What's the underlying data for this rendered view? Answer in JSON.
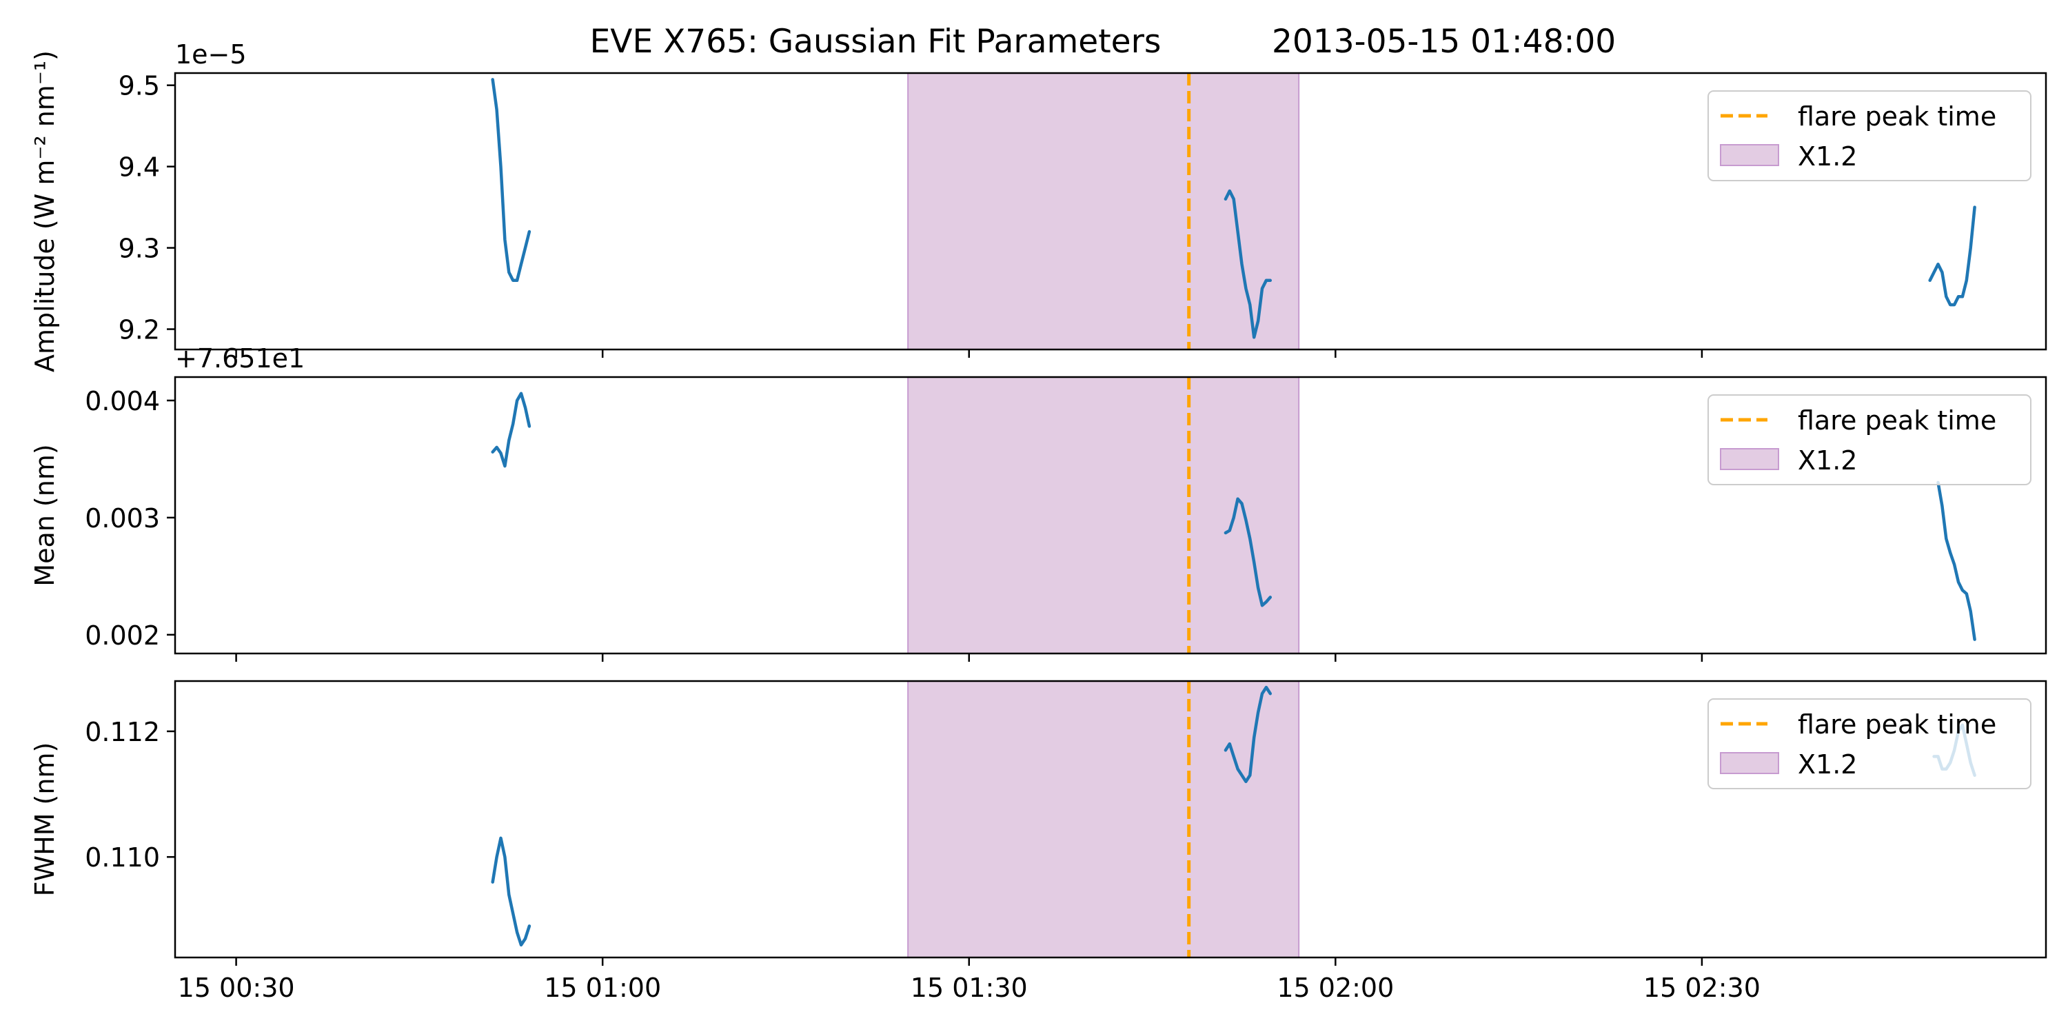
{
  "figure": {
    "title": "EVE X765: Gaussian Fit Parameters",
    "timestamp": "2013-05-15 01:48:00"
  },
  "colors": {
    "series": "#1f77b4",
    "flare_line": "#ffa500",
    "flare_band": "#e3cce3",
    "flare_band_edge": "#c79bd0",
    "axes": "#000000"
  },
  "legend": {
    "position": "top-right",
    "flare_peak_label": "flare peak time",
    "band_label": "X1.2"
  },
  "chart_data": [
    {
      "type": "line",
      "ylabel": "Amplitude (W m⁻² nm⁻¹)",
      "offset_label": "1e−5",
      "ylim": [
        9.175,
        9.515
      ],
      "yticks": [
        {
          "value": 9.2,
          "label": "9.2"
        },
        {
          "value": 9.3,
          "label": "9.3"
        },
        {
          "value": 9.4,
          "label": "9.4"
        },
        {
          "value": 9.5,
          "label": "9.5"
        }
      ],
      "show_xticklabels": false,
      "segments": [
        {
          "x": [
            "00:51:00",
            "00:51:20",
            "00:51:40",
            "00:52:00",
            "00:52:20",
            "00:52:40",
            "00:53:00",
            "00:53:20",
            "00:53:40",
            "00:54:00"
          ],
          "y": [
            9.507,
            9.47,
            9.4,
            9.31,
            9.27,
            9.26,
            9.26,
            9.28,
            9.3,
            9.32
          ]
        },
        {
          "x": [
            "01:51:00",
            "01:51:20",
            "01:51:40",
            "01:52:00",
            "01:52:20",
            "01:52:40",
            "01:53:00",
            "01:53:20",
            "01:53:40",
            "01:54:00",
            "01:54:20",
            "01:54:40"
          ],
          "y": [
            9.36,
            9.37,
            9.36,
            9.32,
            9.28,
            9.25,
            9.23,
            9.19,
            9.21,
            9.25,
            9.26,
            9.26
          ]
        },
        {
          "x": [
            "02:48:40",
            "02:49:00",
            "02:49:20",
            "02:49:40",
            "02:50:00",
            "02:50:20",
            "02:50:40",
            "02:51:00",
            "02:51:20",
            "02:51:40",
            "02:52:00",
            "02:52:20"
          ],
          "y": [
            9.26,
            9.27,
            9.28,
            9.27,
            9.24,
            9.23,
            9.23,
            9.24,
            9.24,
            9.26,
            9.3,
            9.35
          ]
        }
      ]
    },
    {
      "type": "line",
      "ylabel": "Mean (nm)",
      "offset_label": "+7.651e1",
      "ylim": [
        0.00184,
        0.0042
      ],
      "yticks": [
        {
          "value": 0.002,
          "label": "0.002"
        },
        {
          "value": 0.003,
          "label": "0.003"
        },
        {
          "value": 0.004,
          "label": "0.004"
        }
      ],
      "show_xticklabels": false,
      "segments": [
        {
          "x": [
            "00:51:00",
            "00:51:20",
            "00:51:40",
            "00:52:00",
            "00:52:20",
            "00:52:40",
            "00:53:00",
            "00:53:20",
            "00:53:40",
            "00:54:00"
          ],
          "y": [
            0.00356,
            0.0036,
            0.00355,
            0.00344,
            0.00366,
            0.0038,
            0.004,
            0.00406,
            0.00394,
            0.00378
          ]
        },
        {
          "x": [
            "01:51:00",
            "01:51:20",
            "01:51:40",
            "01:52:00",
            "01:52:20",
            "01:52:40",
            "01:53:00",
            "01:53:20",
            "01:53:40",
            "01:54:00",
            "01:54:20",
            "01:54:40"
          ],
          "y": [
            0.00287,
            0.00289,
            0.003,
            0.00316,
            0.00312,
            0.00298,
            0.00282,
            0.00262,
            0.0024,
            0.00225,
            0.00228,
            0.00232
          ]
        },
        {
          "x": [
            "02:49:20",
            "02:49:40",
            "02:50:00",
            "02:50:20",
            "02:50:40",
            "02:51:00",
            "02:51:20",
            "02:51:40",
            "02:52:00",
            "02:52:20"
          ],
          "y": [
            0.0033,
            0.0031,
            0.00282,
            0.0027,
            0.0026,
            0.00245,
            0.00238,
            0.00235,
            0.0022,
            0.00196
          ]
        }
      ]
    },
    {
      "type": "line",
      "ylabel": "FWHM (nm)",
      "offset_label": "",
      "ylim": [
        0.1084,
        0.1128
      ],
      "yticks": [
        {
          "value": 0.11,
          "label": "0.110"
        },
        {
          "value": 0.112,
          "label": "0.112"
        }
      ],
      "show_xticklabels": true,
      "segments": [
        {
          "x": [
            "00:51:00",
            "00:51:20",
            "00:51:40",
            "00:52:00",
            "00:52:20",
            "00:52:40",
            "00:53:00",
            "00:53:20",
            "00:53:40",
            "00:54:00"
          ],
          "y": [
            0.1096,
            0.11,
            0.1103,
            0.11,
            0.1094,
            0.1091,
            0.1088,
            0.1086,
            0.1087,
            0.1089
          ]
        },
        {
          "x": [
            "01:51:00",
            "01:51:20",
            "01:51:40",
            "01:52:00",
            "01:52:20",
            "01:52:40",
            "01:53:00",
            "01:53:20",
            "01:53:40",
            "01:54:00",
            "01:54:20",
            "01:54:40"
          ],
          "y": [
            0.1117,
            0.1118,
            0.1116,
            0.1114,
            0.1113,
            0.1112,
            0.1113,
            0.1119,
            0.1123,
            0.1126,
            0.1127,
            0.1126
          ]
        },
        {
          "x": [
            "02:49:00",
            "02:49:20",
            "02:49:40",
            "02:50:00",
            "02:50:20",
            "02:50:40",
            "02:51:00",
            "02:51:20",
            "02:51:40",
            "02:52:00",
            "02:52:20"
          ],
          "y": [
            0.1116,
            0.1116,
            0.1114,
            0.1114,
            0.1115,
            0.1117,
            0.112,
            0.1121,
            0.1118,
            0.1115,
            0.1113
          ]
        }
      ]
    }
  ],
  "xaxis": {
    "xlim": [
      "00:25:00",
      "02:58:10"
    ],
    "ticks": [
      {
        "value": "00:30:00",
        "label": "15 00:30"
      },
      {
        "value": "01:00:00",
        "label": "15 01:00"
      },
      {
        "value": "01:30:00",
        "label": "15 01:30"
      },
      {
        "value": "02:00:00",
        "label": "15 02:00"
      },
      {
        "value": "02:30:00",
        "label": "15 02:30"
      }
    ]
  },
  "flare": {
    "peak_time": "01:48:00",
    "band_start": "01:25:00",
    "band_end": "01:57:00"
  }
}
